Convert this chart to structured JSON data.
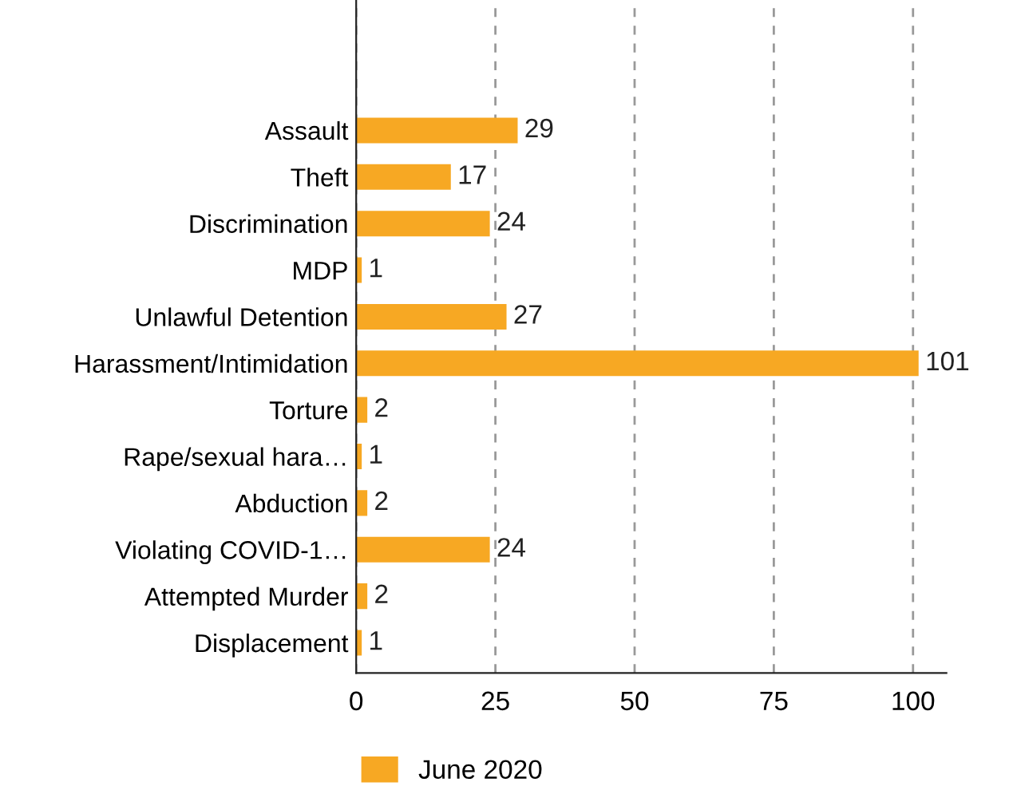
{
  "chart_data": {
    "type": "bar",
    "orientation": "horizontal",
    "categories": [
      "Assault",
      "Theft",
      "Discrimination",
      "MDP",
      "Unlawful Detention",
      "Harassment/Intimidation",
      "Torture",
      "Rape/sexual hara…",
      "Abduction",
      "Violating COVID-1…",
      "Attempted Murder",
      "Displacement"
    ],
    "series": [
      {
        "name": "June 2020",
        "color": "#f7a823",
        "values": [
          29,
          17,
          24,
          1,
          27,
          101,
          2,
          1,
          2,
          24,
          2,
          1
        ]
      }
    ],
    "xlim": [
      0,
      106
    ],
    "xticks": [
      0,
      25,
      50,
      75,
      100
    ],
    "grid": "x",
    "data_labels": true,
    "legend": "bottom"
  }
}
